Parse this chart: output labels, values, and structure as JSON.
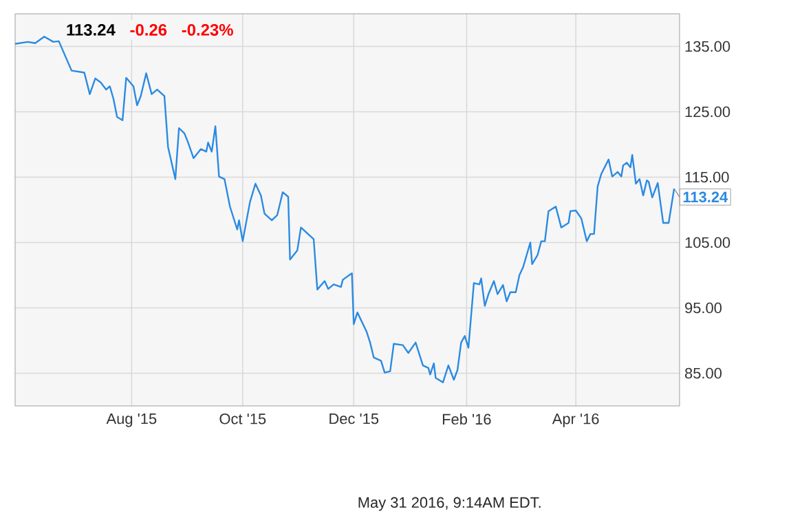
{
  "chart_data": {
    "type": "line",
    "title": "113.24",
    "annotations": [
      "-0.26",
      "-0.23%",
      "May 31 2016, 9:14AM EDT.",
      {
        "text": "113.24",
        "x": "2016-05-25",
        "y": 113.24
      }
    ],
    "x": [
      "2015-05-29",
      "2015-06-05",
      "2015-06-09",
      "2015-06-14",
      "2015-06-19",
      "2015-06-22",
      "2015-06-29",
      "2015-07-06",
      "2015-07-09",
      "2015-07-12",
      "2015-07-15",
      "2015-07-18",
      "2015-07-20",
      "2015-07-22",
      "2015-07-24",
      "2015-07-27",
      "2015-07-29",
      "2015-08-02",
      "2015-08-04",
      "2015-08-06",
      "2015-08-09",
      "2015-08-12",
      "2015-08-15",
      "2015-08-19",
      "2015-08-21",
      "2015-08-25",
      "2015-08-27",
      "2015-08-30",
      "2015-09-01",
      "2015-09-04",
      "2015-09-08",
      "2015-09-11",
      "2015-09-12",
      "2015-09-14",
      "2015-09-16",
      "2015-09-18",
      "2015-09-21",
      "2015-09-24",
      "2015-09-28",
      "2015-09-29",
      "2015-10-01",
      "2015-10-05",
      "2015-10-08",
      "2015-10-11",
      "2015-10-13",
      "2015-10-17",
      "2015-10-20",
      "2015-10-23",
      "2015-10-26",
      "2015-10-27",
      "2015-10-31",
      "2015-11-02",
      "2015-11-09",
      "2015-11-11",
      "2015-11-15",
      "2015-11-17",
      "2015-11-20",
      "2015-11-24",
      "2015-11-25",
      "2015-11-30",
      "2015-12-01",
      "2015-12-03",
      "2015-12-08",
      "2015-12-10",
      "2015-12-12",
      "2015-12-16",
      "2015-12-18",
      "2015-12-21",
      "2015-12-23",
      "2015-12-28",
      "2015-12-31",
      "2016-01-04",
      "2016-01-08",
      "2016-01-11",
      "2016-01-12",
      "2016-01-14",
      "2016-01-15",
      "2016-01-19",
      "2016-01-22",
      "2016-01-25",
      "2016-01-27",
      "2016-01-29",
      "2016-01-31",
      "2016-02-02",
      "2016-02-05",
      "2016-02-08",
      "2016-02-09",
      "2016-02-11",
      "2016-02-13",
      "2016-02-16",
      "2016-02-18",
      "2016-02-21",
      "2016-02-23",
      "2016-02-25",
      "2016-02-28",
      "2016-03-01",
      "2016-03-03",
      "2016-03-07",
      "2016-03-08",
      "2016-03-11",
      "2016-03-13",
      "2016-03-15",
      "2016-03-17",
      "2016-03-21",
      "2016-03-24",
      "2016-03-28",
      "2016-03-29",
      "2016-04-01",
      "2016-04-04",
      "2016-04-07",
      "2016-04-09",
      "2016-04-11",
      "2016-04-13",
      "2016-04-15",
      "2016-04-19",
      "2016-04-21",
      "2016-04-24",
      "2016-04-26",
      "2016-04-27",
      "2016-04-29",
      "2016-05-01",
      "2016-05-02",
      "2016-05-04",
      "2016-05-06",
      "2016-05-08",
      "2016-05-10",
      "2016-05-11",
      "2016-05-13",
      "2016-05-16",
      "2016-05-19",
      "2016-05-22",
      "2016-05-25"
    ],
    "series": [
      {
        "color": "#2a8ae2",
        "values": [
          135.4,
          135.7,
          135.5,
          136.5,
          135.7,
          135.8,
          131.3,
          131.0,
          127.7,
          130.1,
          129.5,
          128.4,
          128.9,
          127.0,
          124.2,
          123.7,
          130.2,
          128.9,
          126.0,
          127.4,
          130.9,
          127.7,
          128.4,
          127.4,
          119.6,
          114.7,
          122.5,
          121.7,
          120.3,
          117.9,
          119.3,
          118.9,
          120.3,
          118.9,
          122.8,
          115.1,
          114.7,
          110.5,
          107.0,
          108.4,
          105.2,
          111.2,
          114.0,
          112.2,
          109.4,
          108.4,
          109.2,
          112.7,
          112.0,
          102.4,
          103.8,
          107.3,
          105.5,
          97.8,
          99.1,
          97.9,
          98.6,
          98.2,
          99.3,
          100.3,
          92.5,
          94.3,
          91.4,
          89.7,
          87.4,
          86.9,
          85.1,
          85.3,
          89.5,
          89.3,
          88.1,
          89.7,
          86.2,
          85.8,
          84.8,
          86.5,
          84.3,
          83.6,
          86.2,
          84.0,
          85.5,
          89.7,
          90.7,
          88.9,
          98.8,
          98.6,
          99.5,
          95.3,
          97.1,
          99.1,
          97.1,
          98.5,
          96.0,
          97.4,
          97.4,
          100.0,
          101.2,
          105.0,
          101.7,
          103.1,
          105.2,
          105.2,
          109.8,
          110.5,
          107.3,
          108.0,
          109.8,
          109.9,
          108.7,
          105.2,
          106.3,
          106.3,
          113.6,
          115.5,
          117.7,
          115.1,
          115.8,
          115.1,
          116.8,
          117.2,
          116.5,
          118.4,
          114.0,
          114.7,
          112.2,
          114.5,
          114.3,
          111.9,
          114.1,
          108.0,
          108.0,
          113.24
        ]
      }
    ],
    "xlim": [
      "2015-05-29",
      "2016-05-28"
    ],
    "xticks": [
      {
        "value": "2015-08-01",
        "label": "Aug '15"
      },
      {
        "value": "2015-10-01",
        "label": "Oct '15"
      },
      {
        "value": "2015-12-01",
        "label": "Dec '15"
      },
      {
        "value": "2016-02-01",
        "label": "Feb '16"
      },
      {
        "value": "2016-04-01",
        "label": "Apr '16"
      }
    ],
    "ylim": [
      80,
      140
    ],
    "yticks": [
      {
        "value": 85,
        "label": "85.00"
      },
      {
        "value": 95,
        "label": "95.00"
      },
      {
        "value": 105,
        "label": "105.00"
      },
      {
        "value": 115,
        "label": "115.00"
      },
      {
        "value": 125,
        "label": "125.00"
      },
      {
        "value": 135,
        "label": "135.00"
      }
    ],
    "grid": true,
    "marker": "none",
    "line_style": "solid"
  }
}
